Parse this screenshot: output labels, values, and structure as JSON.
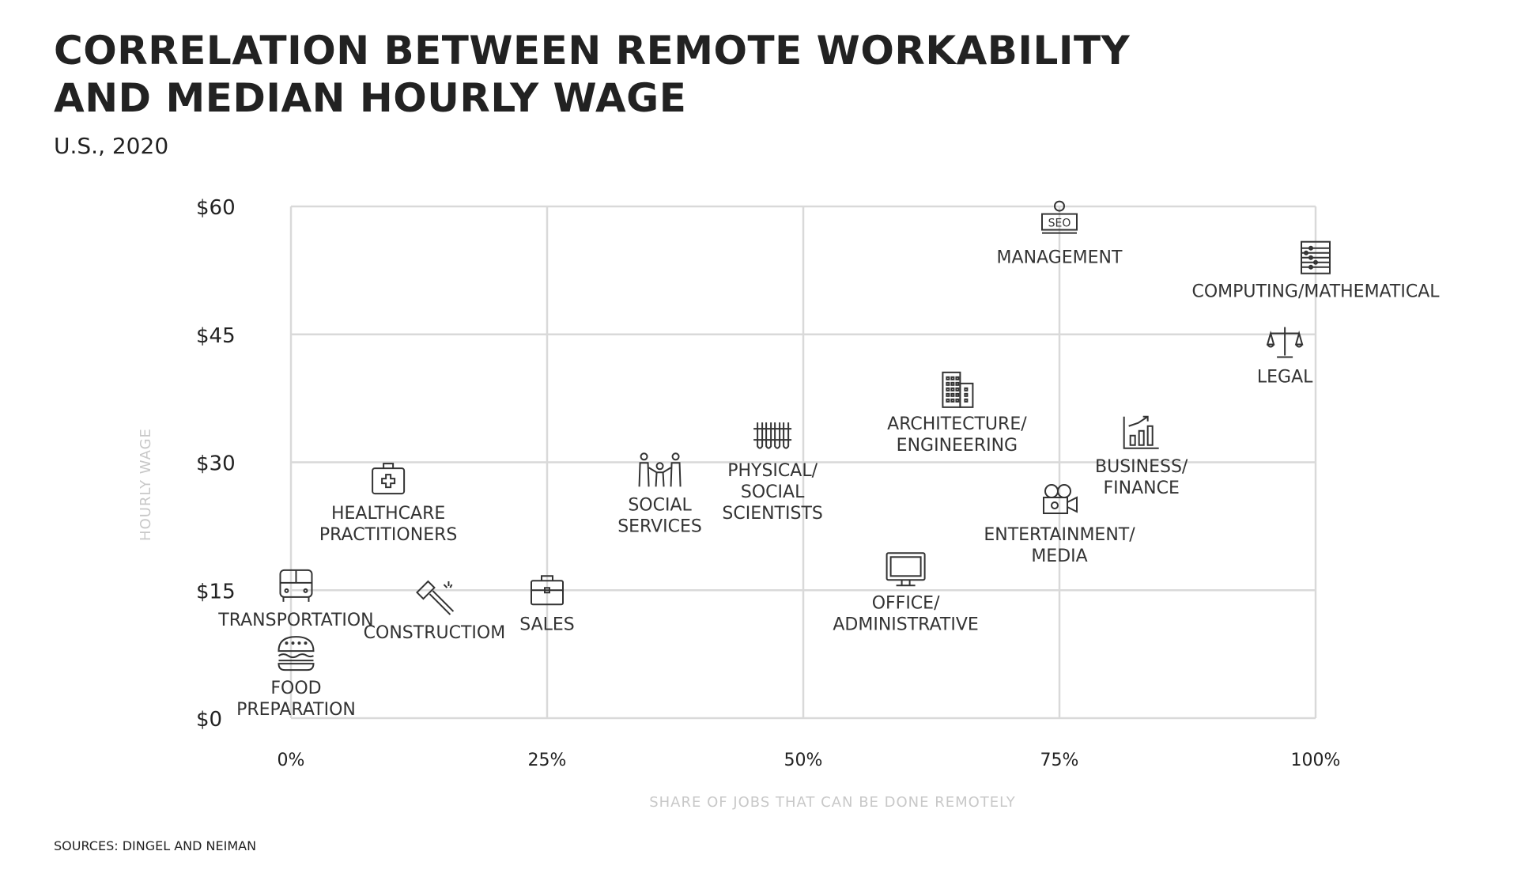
{
  "title_lines": [
    "CORRELATION BETWEEN REMOTE WORKABILITY",
    "AND MEDIAN HOURLY WAGE"
  ],
  "subtitle": "U.S., 2020",
  "source": "SOURCES: DINGEL AND NEIMAN",
  "colors": {
    "grid": "#d9d9d9",
    "text": "#222222",
    "axis_title": "#c8c8c8",
    "icon": "#333333"
  },
  "chart_data": {
    "type": "scatter",
    "xlabel": "SHARE OF JOBS THAT CAN BE DONE REMOTELY",
    "ylabel": "HOURLY WAGE",
    "xlim": [
      0,
      100
    ],
    "ylim": [
      0,
      60
    ],
    "x_ticks": [
      0,
      25,
      50,
      75,
      100
    ],
    "x_tick_labels": [
      "0%",
      "25%",
      "50%",
      "75%",
      "100%"
    ],
    "y_ticks": [
      0,
      15,
      30,
      45,
      60
    ],
    "y_tick_labels": [
      "$0",
      "$15",
      "$30",
      "$45",
      "$60"
    ],
    "grid": true,
    "points": [
      {
        "label": [
          "MANAGEMENT"
        ],
        "x": 75,
        "y": 58,
        "icon": "seo-presenter-icon"
      },
      {
        "label": [
          "COMPUTING/MATHEMATICAL"
        ],
        "x": 100,
        "y": 54,
        "icon": "abacus-icon"
      },
      {
        "label": [
          "LEGAL"
        ],
        "x": 97,
        "y": 44,
        "icon": "scales-icon"
      },
      {
        "label": [
          "ARCHITECTURE/",
          "ENGINEERING"
        ],
        "x": 65,
        "y": 38.5,
        "icon": "building-icon"
      },
      {
        "label": [
          "BUSINESS/",
          "FINANCE"
        ],
        "x": 83,
        "y": 33.5,
        "icon": "growth-chart-icon"
      },
      {
        "label": [
          "PHYSICAL/",
          "SOCIAL",
          "SCIENTISTS"
        ],
        "x": 47,
        "y": 33,
        "icon": "test-tubes-icon"
      },
      {
        "label": [
          "SOCIAL",
          "SERVICES"
        ],
        "x": 36,
        "y": 29,
        "icon": "people-icon"
      },
      {
        "label": [
          "ENTERTAINMENT/",
          "MEDIA"
        ],
        "x": 75,
        "y": 25.5,
        "icon": "movie-camera-icon"
      },
      {
        "label": [
          "HEALTHCARE",
          "PRACTITIONERS"
        ],
        "x": 9.5,
        "y": 28,
        "icon": "first-aid-kit-icon"
      },
      {
        "label": [
          "OFFICE/",
          "ADMINISTRATIVE"
        ],
        "x": 60,
        "y": 17.5,
        "icon": "monitor-icon"
      },
      {
        "label": [
          "TRANSPORTATION"
        ],
        "x": 0.5,
        "y": 15.5,
        "icon": "bus-icon"
      },
      {
        "label": [
          "SALES"
        ],
        "x": 25,
        "y": 15,
        "icon": "briefcase-icon"
      },
      {
        "label": [
          "CONSTRUCTIOM"
        ],
        "x": 14,
        "y": 14,
        "icon": "hammer-icon"
      },
      {
        "label": [
          "FOOD",
          "PREPARATION"
        ],
        "x": 0.5,
        "y": 7.5,
        "icon": "burger-icon"
      }
    ]
  }
}
